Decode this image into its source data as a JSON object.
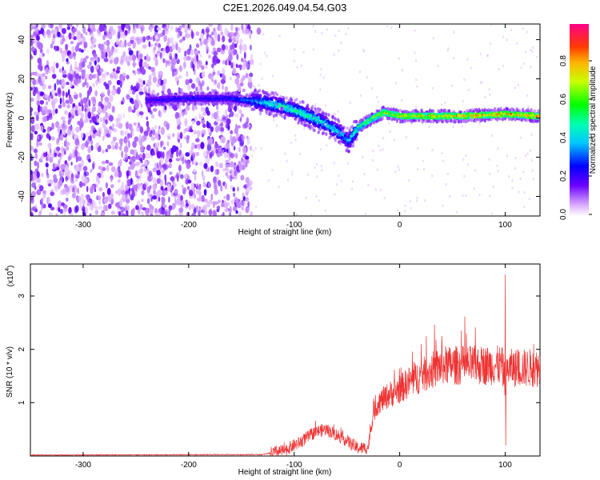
{
  "title": "C2E1.2026.049.04.54.G03",
  "chart_data": [
    {
      "type": "heatmap",
      "name": "spectrogram",
      "xlabel": "Height of straight line (km)",
      "ylabel": "Frequency (Hz)",
      "xlim": [
        -350,
        133
      ],
      "ylim": [
        -50,
        48
      ],
      "x_ticks": [
        -300,
        -200,
        -100,
        0,
        100
      ],
      "y_ticks": [
        -40,
        -20,
        0,
        20,
        40
      ],
      "colorbar": {
        "label": "Normalized spectral amplitude",
        "range": [
          0,
          1
        ],
        "ticks": [
          0.0,
          0.2,
          0.4,
          0.6,
          0.8
        ],
        "tick_labels": [
          "0.0",
          "0.2",
          "0.4",
          "0.6",
          "0.8"
        ]
      },
      "noise_region_x": [
        -350,
        -140
      ],
      "ridge": {
        "x": [
          -240,
          -200,
          -160,
          -130,
          -110,
          -90,
          -70,
          -55,
          -48,
          -40,
          -25,
          -15,
          0,
          30,
          60,
          100,
          133
        ],
        "y": [
          9,
          10,
          10,
          8,
          6,
          2,
          -3,
          -8,
          -12,
          -5,
          0,
          3,
          1,
          1,
          1,
          2,
          1
        ],
        "peak_amplitude": [
          0.25,
          0.3,
          0.3,
          0.45,
          0.55,
          0.55,
          0.5,
          0.45,
          0.4,
          0.6,
          0.75,
          0.8,
          0.85,
          0.9,
          0.92,
          0.95,
          0.9
        ]
      }
    },
    {
      "type": "line",
      "name": "snr",
      "xlabel": "Height of straight line (km)",
      "ylabel": "SNR (10 * v/v)",
      "y_scale_label": "(x10",
      "y_scale_exp": "4",
      "xlim": [
        -350,
        133
      ],
      "ylim": [
        0,
        3.6
      ],
      "x_ticks": [
        -300,
        -200,
        -100,
        0,
        100
      ],
      "y_ticks": [
        1,
        2,
        3
      ],
      "color": "#ee3333",
      "envelope": {
        "x": [
          -350,
          -130,
          -110,
          -95,
          -80,
          -70,
          -55,
          -40,
          -30,
          -25,
          -20,
          -10,
          0,
          10,
          25,
          40,
          55,
          70,
          85,
          97,
          100,
          103,
          110,
          133
        ],
        "y": [
          0.01,
          0.02,
          0.1,
          0.25,
          0.45,
          0.5,
          0.35,
          0.15,
          0.15,
          0.8,
          1.0,
          1.15,
          1.25,
          1.4,
          1.55,
          1.7,
          1.7,
          1.7,
          1.7,
          1.7,
          1.4,
          1.65,
          1.65,
          1.65
        ],
        "spikes": [
          {
            "x": 100,
            "y": 3.4
          },
          {
            "x": 100.5,
            "y": 0.2
          },
          {
            "x": 40,
            "y": 2.25
          },
          {
            "x": 127,
            "y": 2.1
          }
        ]
      }
    }
  ]
}
